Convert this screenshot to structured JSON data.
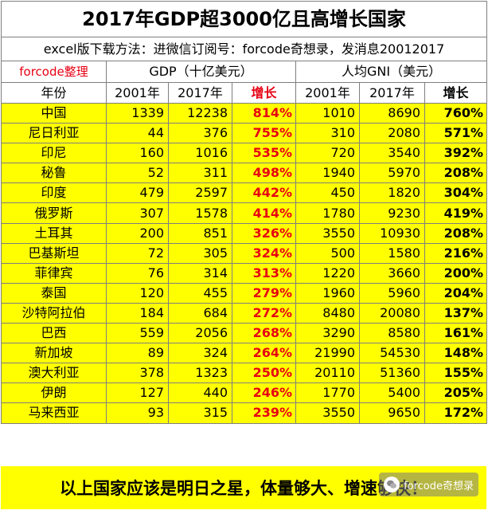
{
  "title": "2017年GDP超3000亿且高增长国家",
  "subtitle": "excel版下载方法：进微信订阅号：forcode奇想录，发消息20012017",
  "header": {
    "credit": "forcode整理",
    "gdp_group": "GDP（十亿美元）",
    "gni_group": "人均GNI（美元）",
    "country_col": "年份",
    "year_2001": "2001年",
    "year_2017": "2017年",
    "growth": "增长"
  },
  "rows": [
    {
      "country": "中国",
      "gdp_2001": "1339",
      "gdp_2017": "12238",
      "gdp_growth": "814%",
      "gni_2001": "1010",
      "gni_2017": "8690",
      "gni_growth": "760%"
    },
    {
      "country": "尼日利亚",
      "gdp_2001": "44",
      "gdp_2017": "376",
      "gdp_growth": "755%",
      "gni_2001": "310",
      "gni_2017": "2080",
      "gni_growth": "571%"
    },
    {
      "country": "印尼",
      "gdp_2001": "160",
      "gdp_2017": "1016",
      "gdp_growth": "535%",
      "gni_2001": "720",
      "gni_2017": "3540",
      "gni_growth": "392%"
    },
    {
      "country": "秘鲁",
      "gdp_2001": "52",
      "gdp_2017": "311",
      "gdp_growth": "498%",
      "gni_2001": "1940",
      "gni_2017": "5970",
      "gni_growth": "208%"
    },
    {
      "country": "印度",
      "gdp_2001": "479",
      "gdp_2017": "2597",
      "gdp_growth": "442%",
      "gni_2001": "450",
      "gni_2017": "1820",
      "gni_growth": "304%"
    },
    {
      "country": "俄罗斯",
      "gdp_2001": "307",
      "gdp_2017": "1578",
      "gdp_growth": "414%",
      "gni_2001": "1780",
      "gni_2017": "9230",
      "gni_growth": "419%"
    },
    {
      "country": "土耳其",
      "gdp_2001": "200",
      "gdp_2017": "851",
      "gdp_growth": "326%",
      "gni_2001": "3550",
      "gni_2017": "10930",
      "gni_growth": "208%"
    },
    {
      "country": "巴基斯坦",
      "gdp_2001": "72",
      "gdp_2017": "305",
      "gdp_growth": "324%",
      "gni_2001": "500",
      "gni_2017": "1580",
      "gni_growth": "216%"
    },
    {
      "country": "菲律宾",
      "gdp_2001": "76",
      "gdp_2017": "314",
      "gdp_growth": "313%",
      "gni_2001": "1220",
      "gni_2017": "3660",
      "gni_growth": "200%"
    },
    {
      "country": "泰国",
      "gdp_2001": "120",
      "gdp_2017": "455",
      "gdp_growth": "279%",
      "gni_2001": "1960",
      "gni_2017": "5960",
      "gni_growth": "204%"
    },
    {
      "country": "沙特阿拉伯",
      "gdp_2001": "184",
      "gdp_2017": "684",
      "gdp_growth": "272%",
      "gni_2001": "8480",
      "gni_2017": "20080",
      "gni_growth": "137%"
    },
    {
      "country": "巴西",
      "gdp_2001": "559",
      "gdp_2017": "2056",
      "gdp_growth": "268%",
      "gni_2001": "3290",
      "gni_2017": "8580",
      "gni_growth": "161%"
    },
    {
      "country": "新加坡",
      "gdp_2001": "89",
      "gdp_2017": "324",
      "gdp_growth": "264%",
      "gni_2001": "21990",
      "gni_2017": "54530",
      "gni_growth": "148%"
    },
    {
      "country": "澳大利亚",
      "gdp_2001": "378",
      "gdp_2017": "1323",
      "gdp_growth": "250%",
      "gni_2001": "20110",
      "gni_2017": "51360",
      "gni_growth": "155%"
    },
    {
      "country": "伊朗",
      "gdp_2001": "127",
      "gdp_2017": "440",
      "gdp_growth": "246%",
      "gni_2001": "1770",
      "gni_2017": "5400",
      "gni_growth": "205%"
    },
    {
      "country": "马来西亚",
      "gdp_2001": "93",
      "gdp_2017": "315",
      "gdp_growth": "239%",
      "gni_2001": "3550",
      "gni_2017": "9650",
      "gni_growth": "172%"
    }
  ],
  "footer": "以上国家应该是明日之星，体量够大、增速够快！",
  "watermark": "forcode奇想录",
  "colors": {
    "highlight": "#ffff00",
    "growth_red": "#e60012",
    "border": "#7f7f7f"
  },
  "icons": {
    "watermark_logo": "wechat-logo-icon"
  }
}
